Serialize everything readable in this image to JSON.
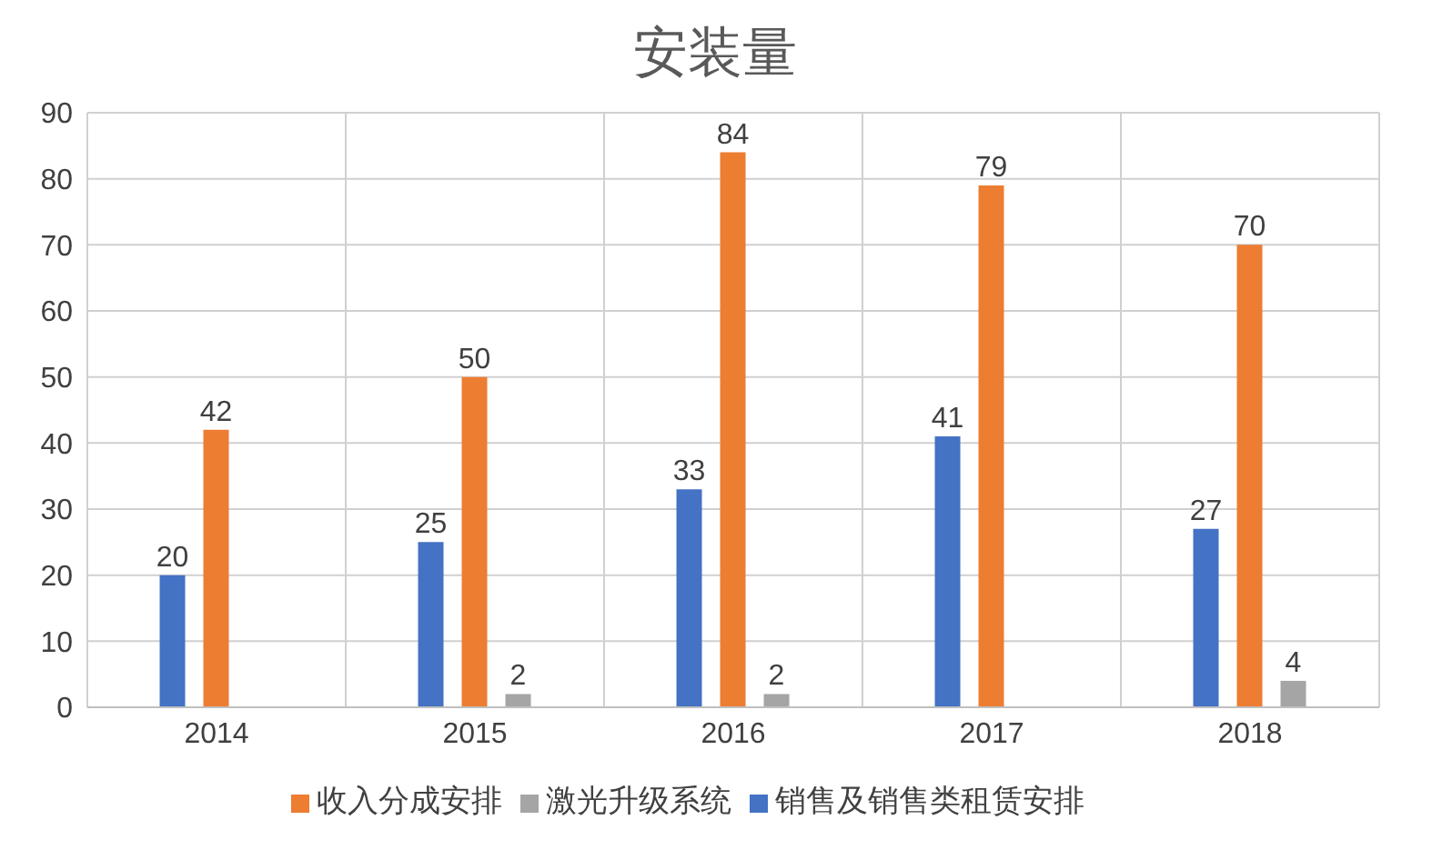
{
  "chart_data": {
    "type": "bar",
    "title": "安装量",
    "categories": [
      "2014",
      "2015",
      "2016",
      "2017",
      "2018"
    ],
    "series": [
      {
        "name": "销售及销售类租赁安排",
        "color": "#4472c4",
        "values": [
          20,
          25,
          33,
          41,
          27
        ]
      },
      {
        "name": "收入分成安排",
        "color": "#ed7d31",
        "values": [
          42,
          50,
          84,
          79,
          70
        ]
      },
      {
        "name": "激光升级系统",
        "color": "#a5a5a5",
        "values": [
          null,
          2,
          2,
          null,
          4
        ]
      }
    ],
    "ylim": [
      0,
      90
    ],
    "yticks": [
      0,
      10,
      20,
      30,
      40,
      50,
      60,
      70,
      80,
      90
    ],
    "grid": true,
    "legend": "bottom",
    "data_labels": true
  }
}
